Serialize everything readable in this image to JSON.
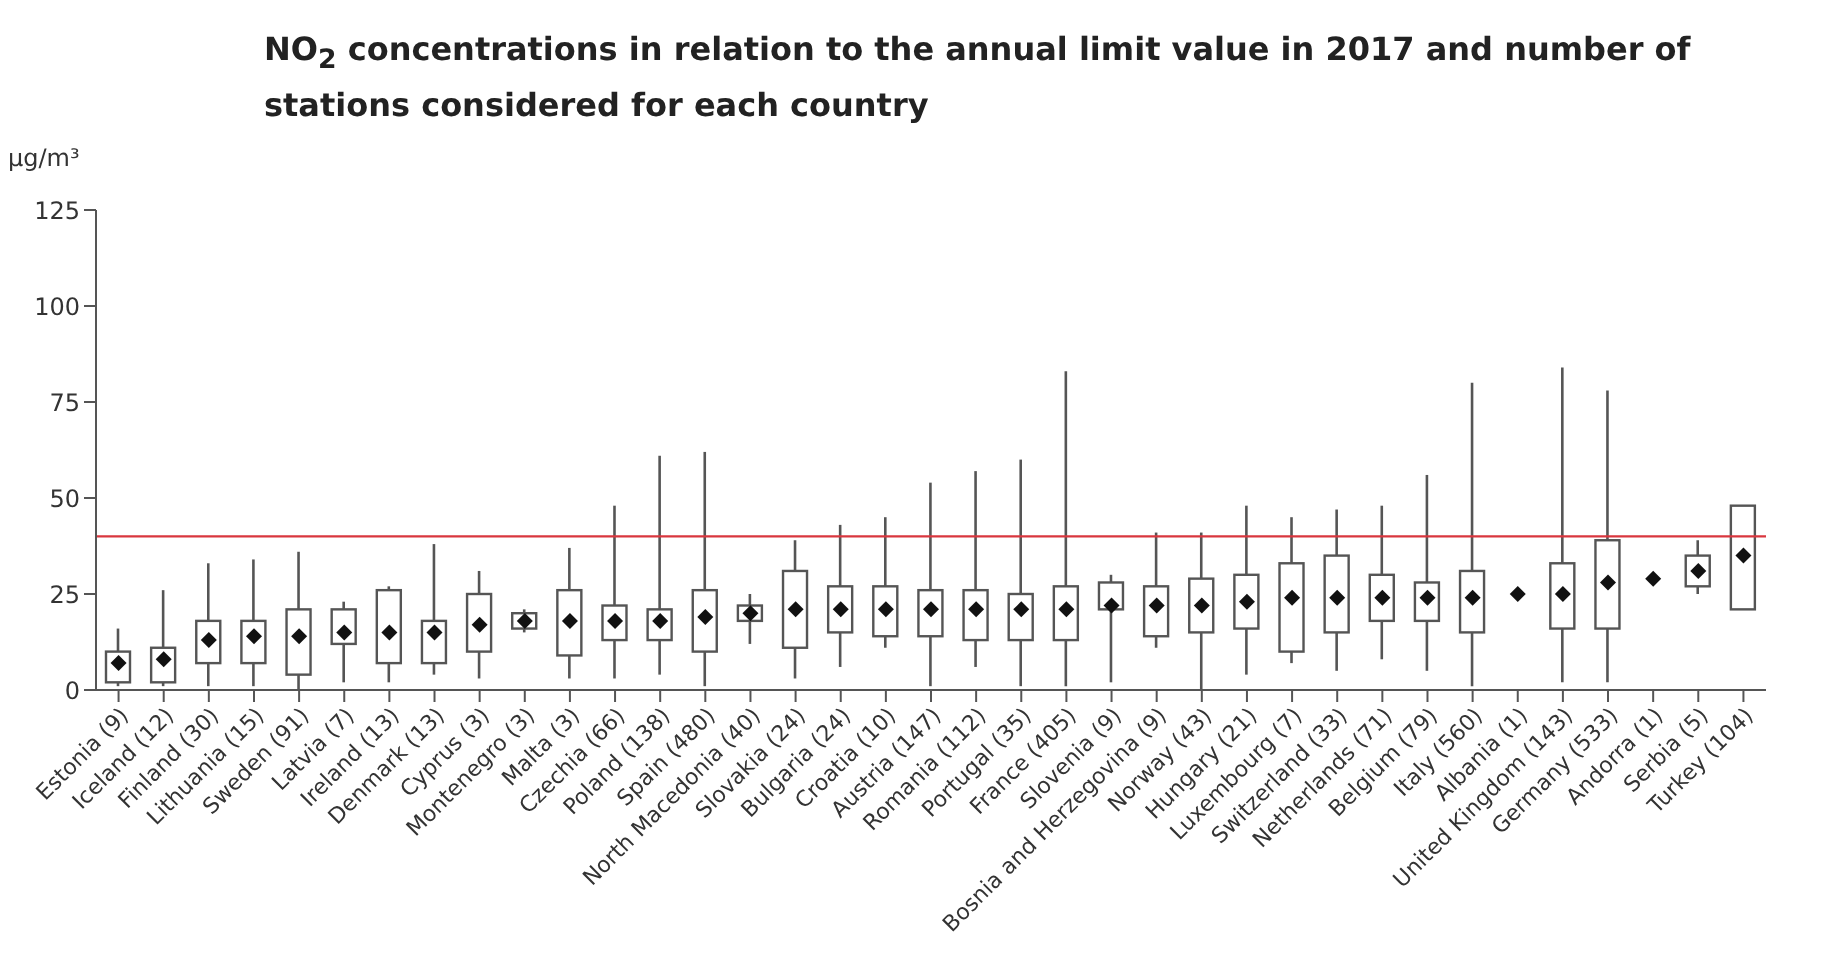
{
  "chart_data": {
    "type": "box",
    "title": "NO$_{2}$ concentrations in relation to the annual limit value in 2017 and number of stations considered for each country",
    "ylabel": "µg/m³",
    "categories": [
      "Estonia (9)",
      "Iceland (12)",
      "Finland (30)",
      "Lithuania (15)",
      "Sweden (91)",
      "Latvia (7)",
      "Ireland (13)",
      "Denmark (13)",
      "Cyprus (3)",
      "Montenegro (3)",
      "Malta (3)",
      "Czechia (66)",
      "Poland (138)",
      "Spain (480)",
      "North Macedonia (40)",
      "Slovakia (24)",
      "Bulgaria (24)",
      "Croatia (10)",
      "Austria (147)",
      "Romania (112)",
      "Portugal (35)",
      "France (405)",
      "Slovenia (9)",
      "Bosnia and Herzegovina (9)",
      "Norway (43)",
      "Hungary (21)",
      "Luxembourg (7)",
      "Switzerland (33)",
      "Netherlands (71)",
      "Belgium (79)",
      "Italy (560)",
      "Albania (1)",
      "United Kingdom (143)",
      "Germany (533)",
      "Andorra (1)",
      "Serbia (5)",
      "Turkey (104)"
    ],
    "boxes": [
      {
        "low": 1,
        "q1": 2,
        "median": 7,
        "q3": 10,
        "high": 16
      },
      {
        "low": 1,
        "q1": 2,
        "median": 8,
        "q3": 11,
        "high": 26
      },
      {
        "low": 1,
        "q1": 7,
        "median": 13,
        "q3": 18,
        "high": 33
      },
      {
        "low": 1,
        "q1": 7,
        "median": 14,
        "q3": 18,
        "high": 34
      },
      {
        "low": 0,
        "q1": 4,
        "median": 14,
        "q3": 21,
        "high": 36
      },
      {
        "low": 2,
        "q1": 12,
        "median": 15,
        "q3": 21,
        "high": 23
      },
      {
        "low": 2,
        "q1": 7,
        "median": 15,
        "q3": 26,
        "high": 27
      },
      {
        "low": 4,
        "q1": 7,
        "median": 15,
        "q3": 18,
        "high": 38
      },
      {
        "low": 3,
        "q1": 10,
        "median": 17,
        "q3": 25,
        "high": 31
      },
      {
        "low": 15,
        "q1": 16,
        "median": 18,
        "q3": 20,
        "high": 21
      },
      {
        "low": 3,
        "q1": 9,
        "median": 18,
        "q3": 26,
        "high": 37
      },
      {
        "low": 3,
        "q1": 13,
        "median": 18,
        "q3": 22,
        "high": 48
      },
      {
        "low": 4,
        "q1": 13,
        "median": 18,
        "q3": 21,
        "high": 61
      },
      {
        "low": 1,
        "q1": 10,
        "median": 19,
        "q3": 26,
        "high": 62
      },
      {
        "low": 12,
        "q1": 18,
        "median": 20,
        "q3": 22,
        "high": 25
      },
      {
        "low": 3,
        "q1": 11,
        "median": 21,
        "q3": 31,
        "high": 39
      },
      {
        "low": 6,
        "q1": 15,
        "median": 21,
        "q3": 27,
        "high": 43
      },
      {
        "low": 11,
        "q1": 14,
        "median": 21,
        "q3": 27,
        "high": 45
      },
      {
        "low": 1,
        "q1": 14,
        "median": 21,
        "q3": 26,
        "high": 54
      },
      {
        "low": 6,
        "q1": 13,
        "median": 21,
        "q3": 26,
        "high": 57
      },
      {
        "low": 1,
        "q1": 13,
        "median": 21,
        "q3": 25,
        "high": 60
      },
      {
        "low": 1,
        "q1": 13,
        "median": 21,
        "q3": 27,
        "high": 83
      },
      {
        "low": 2,
        "q1": 21,
        "median": 22,
        "q3": 28,
        "high": 30
      },
      {
        "low": 11,
        "q1": 14,
        "median": 22,
        "q3": 27,
        "high": 41
      },
      {
        "low": 0,
        "q1": 15,
        "median": 22,
        "q3": 29,
        "high": 41
      },
      {
        "low": 4,
        "q1": 16,
        "median": 23,
        "q3": 30,
        "high": 48
      },
      {
        "low": 7,
        "q1": 10,
        "median": 24,
        "q3": 33,
        "high": 45
      },
      {
        "low": 5,
        "q1": 15,
        "median": 24,
        "q3": 35,
        "high": 47
      },
      {
        "low": 8,
        "q1": 18,
        "median": 24,
        "q3": 30,
        "high": 48
      },
      {
        "low": 5,
        "q1": 18,
        "median": 24,
        "q3": 28,
        "high": 56
      },
      {
        "low": 1,
        "q1": 15,
        "median": 24,
        "q3": 31,
        "high": 80
      },
      null,
      {
        "low": 2,
        "q1": 16,
        "median": 25,
        "q3": 33,
        "high": 84
      },
      {
        "low": 2,
        "q1": 16,
        "median": 28,
        "q3": 39,
        "high": 78
      },
      null,
      {
        "low": 25,
        "q1": 27,
        "median": 31,
        "q3": 35,
        "high": 39
      },
      {
        "low": 21,
        "q1": 21,
        "median": 35,
        "q3": 48,
        "high": 48
      }
    ],
    "series": [
      {
        "type": "scatter",
        "x": [
          "Albania (1)",
          "Andorra (1)"
        ],
        "values": [
          25,
          29
        ],
        "color": "#111111",
        "marker": "diamond"
      }
    ],
    "ylim": [
      0,
      125
    ],
    "yticks": [
      0,
      25,
      50,
      75,
      100,
      125
    ],
    "ref_lines": [
      {
        "axis": "y",
        "value": 40,
        "color": "#d9363e"
      }
    ],
    "grid": false,
    "legend": false
  }
}
